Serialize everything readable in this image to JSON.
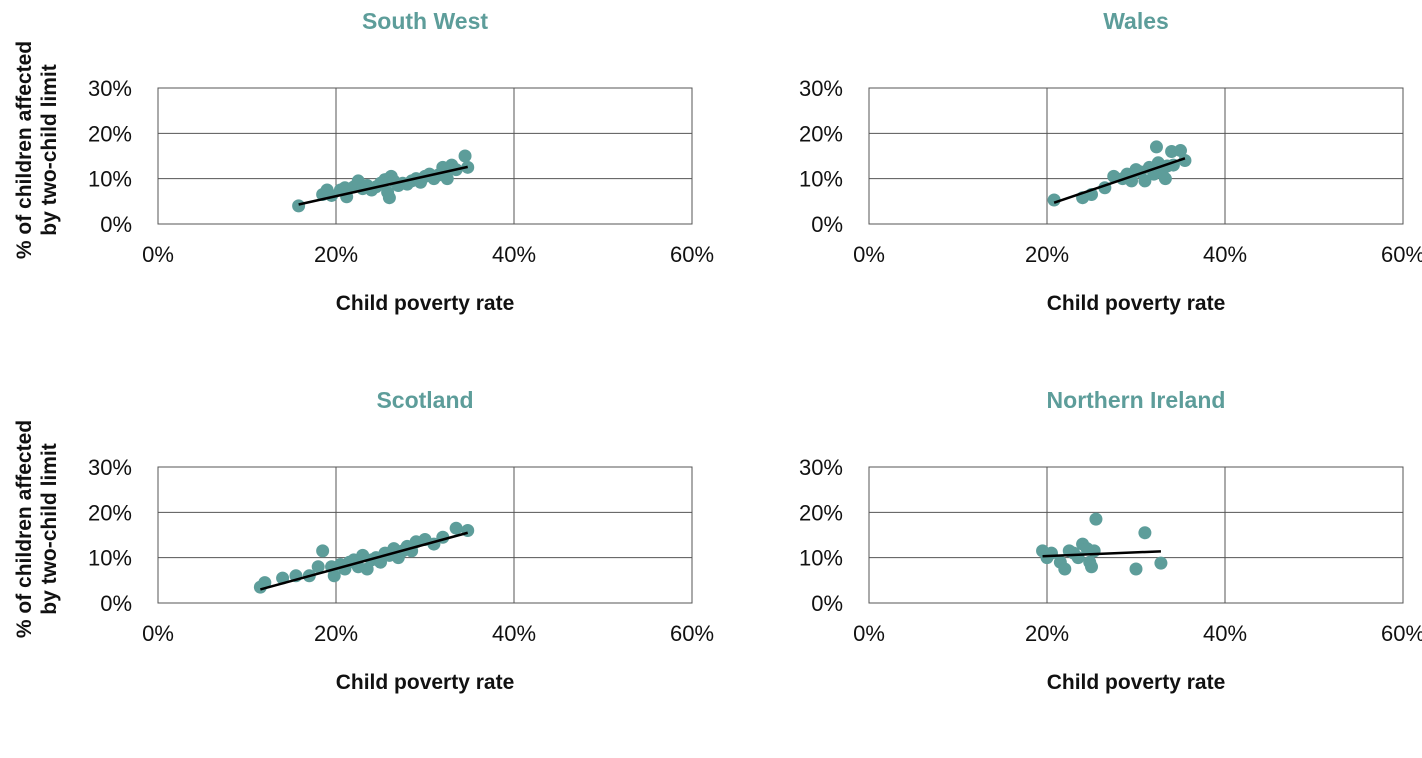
{
  "colors": {
    "marker": "#5d9d9a",
    "title": "#5d9d9a",
    "trend": "#000000",
    "grid": "#555555"
  },
  "chart_data": [
    {
      "type": "scatter",
      "title": "South West",
      "xlabel": "Child poverty rate",
      "ylabel": [
        "% of children affected",
        "by two-child limit"
      ],
      "xlim": [
        0,
        60
      ],
      "ylim": [
        0,
        30
      ],
      "xticks": [
        "0%",
        "20%",
        "40%",
        "60%"
      ],
      "yticks": [
        "0%",
        "10%",
        "20%",
        "30%"
      ],
      "points": [
        [
          15.8,
          4.0
        ],
        [
          18.5,
          6.5
        ],
        [
          19.0,
          7.5
        ],
        [
          19.5,
          6.3
        ],
        [
          20.5,
          7.5
        ],
        [
          21.0,
          8.0
        ],
        [
          21.2,
          6.0
        ],
        [
          22.0,
          8.2
        ],
        [
          22.5,
          9.5
        ],
        [
          23.0,
          7.8
        ],
        [
          23.5,
          8.5
        ],
        [
          24.0,
          7.5
        ],
        [
          24.5,
          8.2
        ],
        [
          25.0,
          9.0
        ],
        [
          25.5,
          9.8
        ],
        [
          25.8,
          7.0
        ],
        [
          26.0,
          5.8
        ],
        [
          26.2,
          10.5
        ],
        [
          26.5,
          9.5
        ],
        [
          27.0,
          8.5
        ],
        [
          27.5,
          9.0
        ],
        [
          28.0,
          8.8
        ],
        [
          28.5,
          9.5
        ],
        [
          29.0,
          10.0
        ],
        [
          29.5,
          9.2
        ],
        [
          30.0,
          10.5
        ],
        [
          30.5,
          11.0
        ],
        [
          31.0,
          10.0
        ],
        [
          31.5,
          10.8
        ],
        [
          32.0,
          12.5
        ],
        [
          32.2,
          11.0
        ],
        [
          32.5,
          10.0
        ],
        [
          33.0,
          13.0
        ],
        [
          33.5,
          12.0
        ],
        [
          34.5,
          15.0
        ],
        [
          34.8,
          12.5
        ]
      ],
      "trendline": [
        [
          15.8,
          4.3
        ],
        [
          34.8,
          12.6
        ]
      ]
    },
    {
      "type": "scatter",
      "title": "Wales",
      "xlabel": "Child poverty rate",
      "ylabel": [],
      "xlim": [
        0,
        60
      ],
      "ylim": [
        0,
        30
      ],
      "xticks": [
        "0%",
        "20%",
        "40%",
        "60%"
      ],
      "yticks": [
        "0%",
        "10%",
        "20%",
        "30%"
      ],
      "points": [
        [
          20.8,
          5.3
        ],
        [
          24.0,
          5.8
        ],
        [
          25.0,
          6.5
        ],
        [
          26.5,
          8.0
        ],
        [
          27.5,
          10.5
        ],
        [
          28.5,
          10.0
        ],
        [
          29.0,
          11.0
        ],
        [
          29.5,
          9.5
        ],
        [
          30.0,
          12.0
        ],
        [
          30.5,
          11.5
        ],
        [
          31.0,
          9.5
        ],
        [
          31.5,
          12.5
        ],
        [
          32.0,
          11.0
        ],
        [
          32.3,
          17.0
        ],
        [
          32.5,
          13.5
        ],
        [
          33.0,
          12.0
        ],
        [
          33.3,
          10.0
        ],
        [
          33.5,
          12.8
        ],
        [
          34.0,
          16.0
        ],
        [
          34.2,
          13.0
        ],
        [
          35.0,
          16.2
        ],
        [
          35.5,
          14.0
        ]
      ],
      "trendline": [
        [
          20.8,
          4.7
        ],
        [
          35.5,
          14.5
        ]
      ]
    },
    {
      "type": "scatter",
      "title": "Scotland",
      "xlabel": "Child poverty rate",
      "ylabel": [
        "% of children affected",
        "by two-child limit"
      ],
      "xlim": [
        0,
        60
      ],
      "ylim": [
        0,
        30
      ],
      "xticks": [
        "0%",
        "20%",
        "40%",
        "60%"
      ],
      "yticks": [
        "0%",
        "10%",
        "20%",
        "30%"
      ],
      "points": [
        [
          11.5,
          3.5
        ],
        [
          12.0,
          4.5
        ],
        [
          14.0,
          5.5
        ],
        [
          15.5,
          6.0
        ],
        [
          17.0,
          6.0
        ],
        [
          18.0,
          8.0
        ],
        [
          18.5,
          11.5
        ],
        [
          19.5,
          8.0
        ],
        [
          19.8,
          6.0
        ],
        [
          20.5,
          8.5
        ],
        [
          21.0,
          7.5
        ],
        [
          21.5,
          9.0
        ],
        [
          22.0,
          9.5
        ],
        [
          22.5,
          8.0
        ],
        [
          23.0,
          10.5
        ],
        [
          23.5,
          7.5
        ],
        [
          24.0,
          9.5
        ],
        [
          24.5,
          10.0
        ],
        [
          25.0,
          9.0
        ],
        [
          25.5,
          11.0
        ],
        [
          26.0,
          10.5
        ],
        [
          26.5,
          12.0
        ],
        [
          27.0,
          10.0
        ],
        [
          27.5,
          11.5
        ],
        [
          28.0,
          12.5
        ],
        [
          28.5,
          11.5
        ],
        [
          29.0,
          13.5
        ],
        [
          30.0,
          14.0
        ],
        [
          31.0,
          13.0
        ],
        [
          32.0,
          14.5
        ],
        [
          33.5,
          16.5
        ],
        [
          34.8,
          16.0
        ]
      ],
      "trendline": [
        [
          11.5,
          3.0
        ],
        [
          34.8,
          15.5
        ]
      ]
    },
    {
      "type": "scatter",
      "title": "Northern Ireland",
      "xlabel": "Child poverty rate",
      "ylabel": [],
      "xlim": [
        0,
        60
      ],
      "ylim": [
        0,
        30
      ],
      "xticks": [
        "0%",
        "20%",
        "40%",
        "60%"
      ],
      "yticks": [
        "0%",
        "10%",
        "20%",
        "30%"
      ],
      "points": [
        [
          19.5,
          11.5
        ],
        [
          20.0,
          10.0
        ],
        [
          20.5,
          11.0
        ],
        [
          21.5,
          9.0
        ],
        [
          22.0,
          7.5
        ],
        [
          22.5,
          11.5
        ],
        [
          23.0,
          11.0
        ],
        [
          23.5,
          10.0
        ],
        [
          24.0,
          13.0
        ],
        [
          24.5,
          12.0
        ],
        [
          24.8,
          9.0
        ],
        [
          25.0,
          8.0
        ],
        [
          25.3,
          11.5
        ],
        [
          25.5,
          18.5
        ],
        [
          30.0,
          7.5
        ],
        [
          31.0,
          15.5
        ],
        [
          32.8,
          8.8
        ]
      ],
      "trendline": [
        [
          19.5,
          10.3
        ],
        [
          32.8,
          11.4
        ]
      ]
    }
  ]
}
